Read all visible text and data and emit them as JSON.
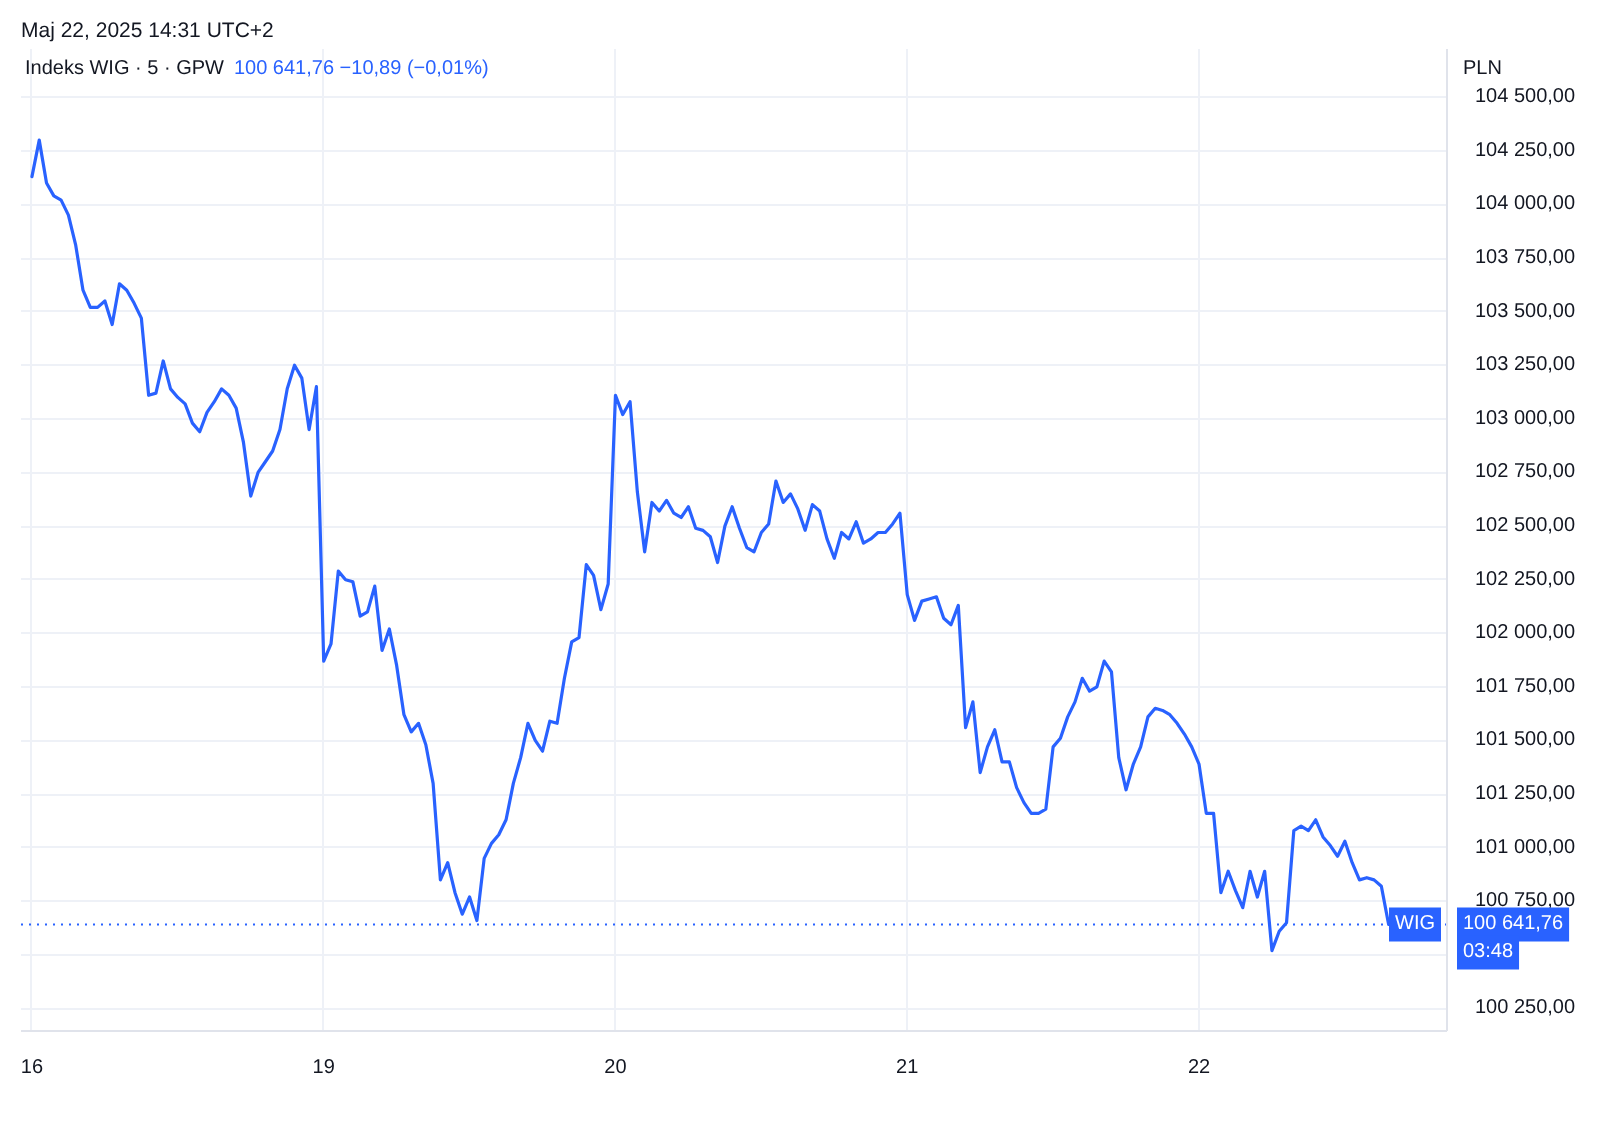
{
  "chart_data": {
    "type": "line",
    "title": "Indeks WIG · 5 · GPW",
    "subtitle": "100 641,76 −10,89 (−0,01%)",
    "ylabel": "PLN",
    "annotations": [
      "Maj 22, 2025 14:31 UTC+2",
      "100 641,76",
      "03:48"
    ],
    "ylim": [
      100145,
      104725
    ],
    "yticks": [
      {
        "value": 100250,
        "label": "100 250,00"
      },
      {
        "value": 100500,
        "label": null
      },
      {
        "value": 100750,
        "label": "100 750,00"
      },
      {
        "value": 101000,
        "label": "101 000,00"
      },
      {
        "value": 101250,
        "label": "101 250,00"
      },
      {
        "value": 101500,
        "label": "101 500,00"
      },
      {
        "value": 101750,
        "label": "101 750,00"
      },
      {
        "value": 102000,
        "label": "102 000,00"
      },
      {
        "value": 102250,
        "label": "102 250,00"
      },
      {
        "value": 102500,
        "label": "102 500,00"
      },
      {
        "value": 102750,
        "label": "102 750,00"
      },
      {
        "value": 103000,
        "label": "103 000,00"
      },
      {
        "value": 103250,
        "label": "103 250,00"
      },
      {
        "value": 103500,
        "label": "103 500,00"
      },
      {
        "value": 103750,
        "label": "103 750,00"
      },
      {
        "value": 104000,
        "label": "104 000,00"
      },
      {
        "value": 104250,
        "label": "104 250,00"
      },
      {
        "value": 104500,
        "label": "104 500,00"
      }
    ],
    "grid": true,
    "ref_lines": [
      {
        "axis": "y",
        "value": 100641.76,
        "label": "WIG",
        "color": "#2962ff",
        "line_style": "dotted"
      }
    ],
    "categories": [
      "16",
      null,
      null,
      null,
      null,
      null,
      null,
      null,
      null,
      null,
      null,
      null,
      null,
      null,
      null,
      null,
      null,
      null,
      null,
      null,
      null,
      null,
      null,
      null,
      null,
      null,
      null,
      null,
      null,
      null,
      null,
      null,
      null,
      null,
      null,
      null,
      null,
      null,
      null,
      null,
      "19",
      null,
      null,
      null,
      null,
      null,
      null,
      null,
      null,
      null,
      null,
      null,
      null,
      null,
      null,
      null,
      null,
      null,
      null,
      null,
      null,
      null,
      null,
      null,
      null,
      null,
      null,
      null,
      null,
      null,
      null,
      null,
      null,
      null,
      null,
      null,
      null,
      null,
      null,
      null,
      "20",
      null,
      null,
      null,
      null,
      null,
      null,
      null,
      null,
      null,
      null,
      null,
      null,
      null,
      null,
      null,
      null,
      null,
      null,
      null,
      null,
      null,
      null,
      null,
      null,
      null,
      null,
      null,
      null,
      null,
      null,
      null,
      null,
      null,
      null,
      null,
      null,
      null,
      null,
      null,
      "21",
      null,
      null,
      null,
      null,
      null,
      null,
      null,
      null,
      null,
      null,
      null,
      null,
      null,
      null,
      null,
      null,
      null,
      null,
      null,
      null,
      null,
      null,
      null,
      null,
      null,
      null,
      null,
      null,
      null,
      null,
      null,
      null,
      null,
      null,
      null,
      null,
      null,
      null,
      null,
      "22",
      null,
      null,
      null,
      null,
      null,
      null,
      null,
      null,
      null,
      null,
      null,
      null,
      null,
      null,
      null,
      null,
      null,
      null,
      null,
      null,
      null,
      null,
      null,
      null,
      null,
      null
    ],
    "series": [
      {
        "color": "#2962ff",
        "values": [
          104130,
          104300,
          104100,
          104040,
          104020,
          103950,
          103810,
          103600,
          103520,
          103520,
          103550,
          103440,
          103630,
          103600,
          103540,
          103470,
          103110,
          103120,
          103270,
          103140,
          103100,
          103070,
          102980,
          102940,
          103030,
          103080,
          103140,
          103110,
          103050,
          102890,
          102640,
          102750,
          102800,
          102850,
          102950,
          103140,
          103250,
          103190,
          102950,
          103150,
          101870,
          101950,
          102290,
          102250,
          102240,
          102080,
          102100,
          102220,
          101920,
          102020,
          101850,
          101620,
          101540,
          101580,
          101480,
          101300,
          100850,
          100930,
          100790,
          100690,
          100770,
          100660,
          100950,
          101020,
          101060,
          101130,
          101300,
          101420,
          101580,
          101500,
          101450,
          101590,
          101580,
          101790,
          101960,
          101980,
          102320,
          102270,
          102110,
          102230,
          103110,
          103020,
          103080,
          102660,
          102380,
          102610,
          102570,
          102620,
          102560,
          102540,
          102590,
          102490,
          102480,
          102450,
          102330,
          102500,
          102590,
          102490,
          102400,
          102380,
          102470,
          102510,
          102710,
          102610,
          102650,
          102580,
          102480,
          102600,
          102570,
          102440,
          102350,
          102470,
          102440,
          102520,
          102420,
          102440,
          102470,
          102470,
          102510,
          102560,
          102180,
          102060,
          102150,
          102160,
          102170,
          102070,
          102040,
          102130,
          101560,
          101680,
          101350,
          101470,
          101550,
          101400,
          101400,
          101280,
          101210,
          101160,
          101160,
          101180,
          101470,
          101510,
          101610,
          101680,
          101790,
          101730,
          101750,
          101870,
          101820,
          101420,
          101270,
          101390,
          101470,
          101610,
          101650,
          101640,
          101620,
          101580,
          101530,
          101470,
          101390,
          101160,
          101160,
          100790,
          100890,
          100800,
          100720,
          100890,
          100770,
          100890,
          100520,
          100610,
          100650,
          101080,
          101100,
          101080,
          101130,
          101050,
          101010,
          100960,
          101030,
          100930,
          100850,
          100860,
          100850,
          100820,
          100641.76
        ]
      }
    ]
  }
}
